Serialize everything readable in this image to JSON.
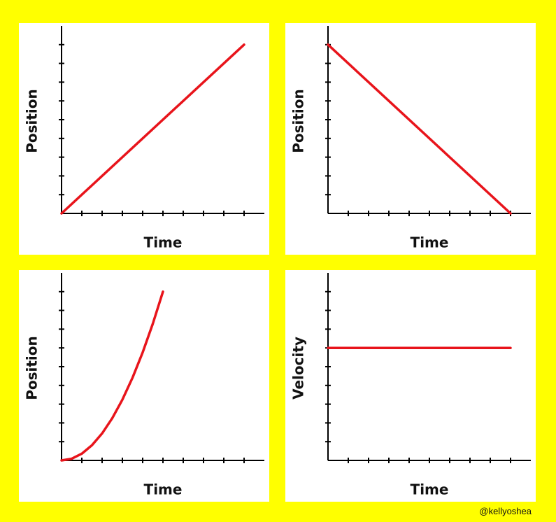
{
  "chart_data": [
    {
      "type": "line",
      "xlabel": "Time",
      "ylabel": "Position",
      "color": "#e8141b",
      "x": [
        0,
        9
      ],
      "values": [
        0,
        9
      ],
      "xlim": [
        0,
        10
      ],
      "ylim": [
        0,
        10
      ],
      "xticks": [
        1,
        2,
        3,
        4,
        5,
        6,
        7,
        8,
        9
      ],
      "yticks": [
        1,
        2,
        3,
        4,
        5,
        6,
        7,
        8,
        9
      ]
    },
    {
      "type": "line",
      "xlabel": "Time",
      "ylabel": "Position",
      "color": "#e8141b",
      "x": [
        0,
        9
      ],
      "values": [
        9,
        0
      ],
      "xlim": [
        0,
        10
      ],
      "ylim": [
        0,
        10
      ],
      "xticks": [
        1,
        2,
        3,
        4,
        5,
        6,
        7,
        8,
        9
      ],
      "yticks": [
        1,
        2,
        3,
        4,
        5,
        6,
        7,
        8,
        9
      ]
    },
    {
      "type": "line",
      "xlabel": "Time",
      "ylabel": "Position",
      "color": "#e8141b",
      "x": [
        0,
        0.5,
        1,
        1.5,
        2,
        2.5,
        3,
        3.5,
        4,
        4.5,
        5
      ],
      "values": [
        0,
        0.09,
        0.36,
        0.81,
        1.44,
        2.25,
        3.24,
        4.41,
        5.76,
        7.29,
        9
      ],
      "xlim": [
        0,
        10
      ],
      "ylim": [
        0,
        10
      ],
      "xticks": [
        1,
        2,
        3,
        4,
        5,
        6,
        7,
        8,
        9
      ],
      "yticks": [
        1,
        2,
        3,
        4,
        5,
        6,
        7,
        8,
        9
      ]
    },
    {
      "type": "line",
      "xlabel": "Time",
      "ylabel": "Velocity",
      "color": "#e8141b",
      "x": [
        0,
        9
      ],
      "values": [
        6,
        6
      ],
      "xlim": [
        0,
        10
      ],
      "ylim": [
        0,
        10
      ],
      "xticks": [
        1,
        2,
        3,
        4,
        5,
        6,
        7,
        8,
        9
      ],
      "yticks": [
        1,
        2,
        3,
        4,
        5,
        6,
        7,
        8,
        9
      ]
    }
  ],
  "credit": "@kellyoshea"
}
